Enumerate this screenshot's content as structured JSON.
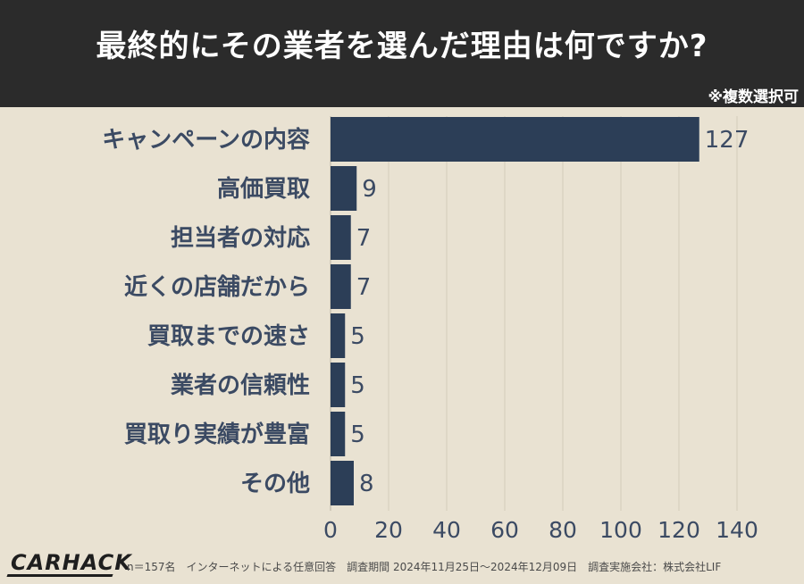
{
  "header": {
    "title": "最終的にその業者を選んだ理由は何ですか?",
    "note": "※複数選択可"
  },
  "footer": {
    "logo": "CARHACK",
    "text": "n＝157名　インターネットによる任意回答　調査期間 2024年11月25日〜2024年12月09日　調査実施会社：株式会社LIF"
  },
  "colors": {
    "bar": "#2c3e57",
    "header_bg": "#2b2b2b",
    "background": "#e9e2d2",
    "label": "#3b4a63",
    "value": "#3b4a63"
  },
  "chart_data": {
    "type": "bar",
    "orientation": "horizontal",
    "categories": [
      "キャンペーンの内容",
      "高価買取",
      "担当者の対応",
      "近くの店舗だから",
      "買取までの速さ",
      "業者の信頼性",
      "買取り実績が豊富",
      "その他"
    ],
    "values": [
      127,
      9,
      7,
      7,
      5,
      5,
      5,
      8
    ],
    "xlim": [
      0,
      140
    ],
    "xticks": [
      0,
      20,
      40,
      60,
      80,
      100,
      120,
      140
    ],
    "grid": true,
    "legend": "none"
  }
}
